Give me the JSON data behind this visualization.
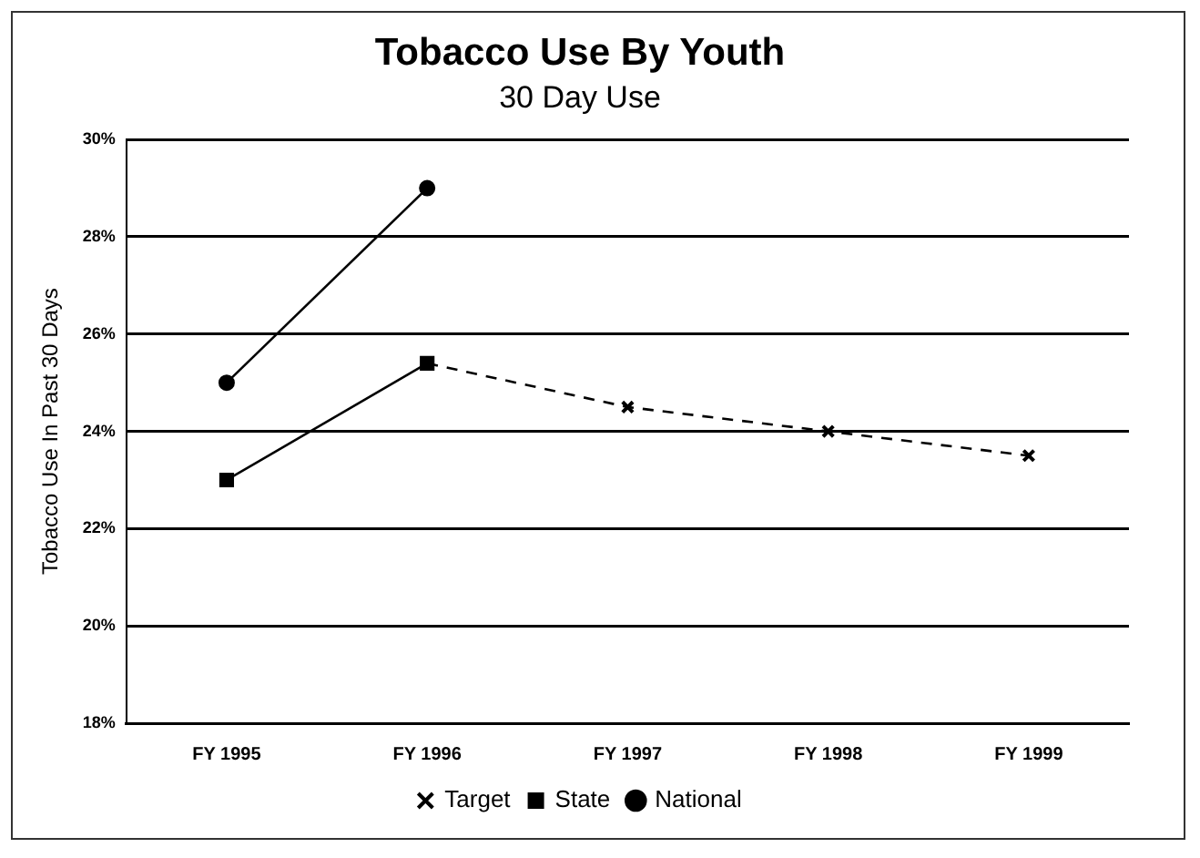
{
  "chart_data": {
    "type": "line",
    "title": "Tobacco Use By Youth",
    "subtitle": "30 Day Use",
    "ylabel": "Tobacco Use In Past 30 Days",
    "categories": [
      "FY 1995",
      "FY 1996",
      "FY 1997",
      "FY 1998",
      "FY 1999"
    ],
    "series": [
      {
        "name": "Target",
        "color": "#000000",
        "values": [
          null,
          25.4,
          24.5,
          24,
          23.5
        ],
        "marker": "cross",
        "line_style": "dashed"
      },
      {
        "name": "State",
        "color": "#000000",
        "values": [
          23,
          25.4,
          null,
          null,
          null
        ],
        "marker": "square",
        "line_style": "solid"
      },
      {
        "name": "National",
        "color": "#000000",
        "values": [
          25,
          29,
          null,
          null,
          null
        ],
        "marker": "circle",
        "line_style": "solid"
      }
    ],
    "ylim": [
      18,
      30
    ],
    "yticks": [
      {
        "value": 18,
        "label": "18%"
      },
      {
        "value": 20,
        "label": "20%"
      },
      {
        "value": 22,
        "label": "22%"
      },
      {
        "value": 24,
        "label": "24%"
      },
      {
        "value": 26,
        "label": "26%"
      },
      {
        "value": 28,
        "label": "28%"
      },
      {
        "value": 30,
        "label": "30%"
      }
    ],
    "grid": "y",
    "legend": "bottom"
  }
}
